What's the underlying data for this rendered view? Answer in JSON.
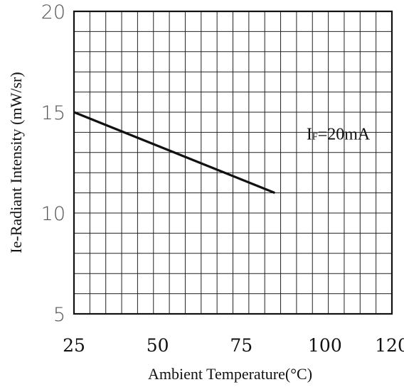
{
  "chart_data": {
    "type": "line",
    "title": "",
    "xlabel": "Ambient Temperature(°C)",
    "ylabel": "Ie-Radiant Intensity (mW/sr)",
    "xlim": [
      25,
      120
    ],
    "ylim": [
      5,
      20
    ],
    "x_ticks": [
      "25",
      "50",
      "75",
      "100",
      "120"
    ],
    "x_tick_values": [
      25,
      50,
      75,
      100,
      120
    ],
    "y_ticks": [
      "5",
      "10",
      "15",
      "20"
    ],
    "y_tick_values": [
      5,
      10,
      15,
      20
    ],
    "grid": true,
    "series": [
      {
        "x": [
          25,
          85
        ],
        "y": [
          15,
          11
        ]
      }
    ],
    "annotation": {
      "main": "I",
      "sub": "F",
      "rest": "=20mA",
      "x": 100,
      "y": 14
    }
  }
}
